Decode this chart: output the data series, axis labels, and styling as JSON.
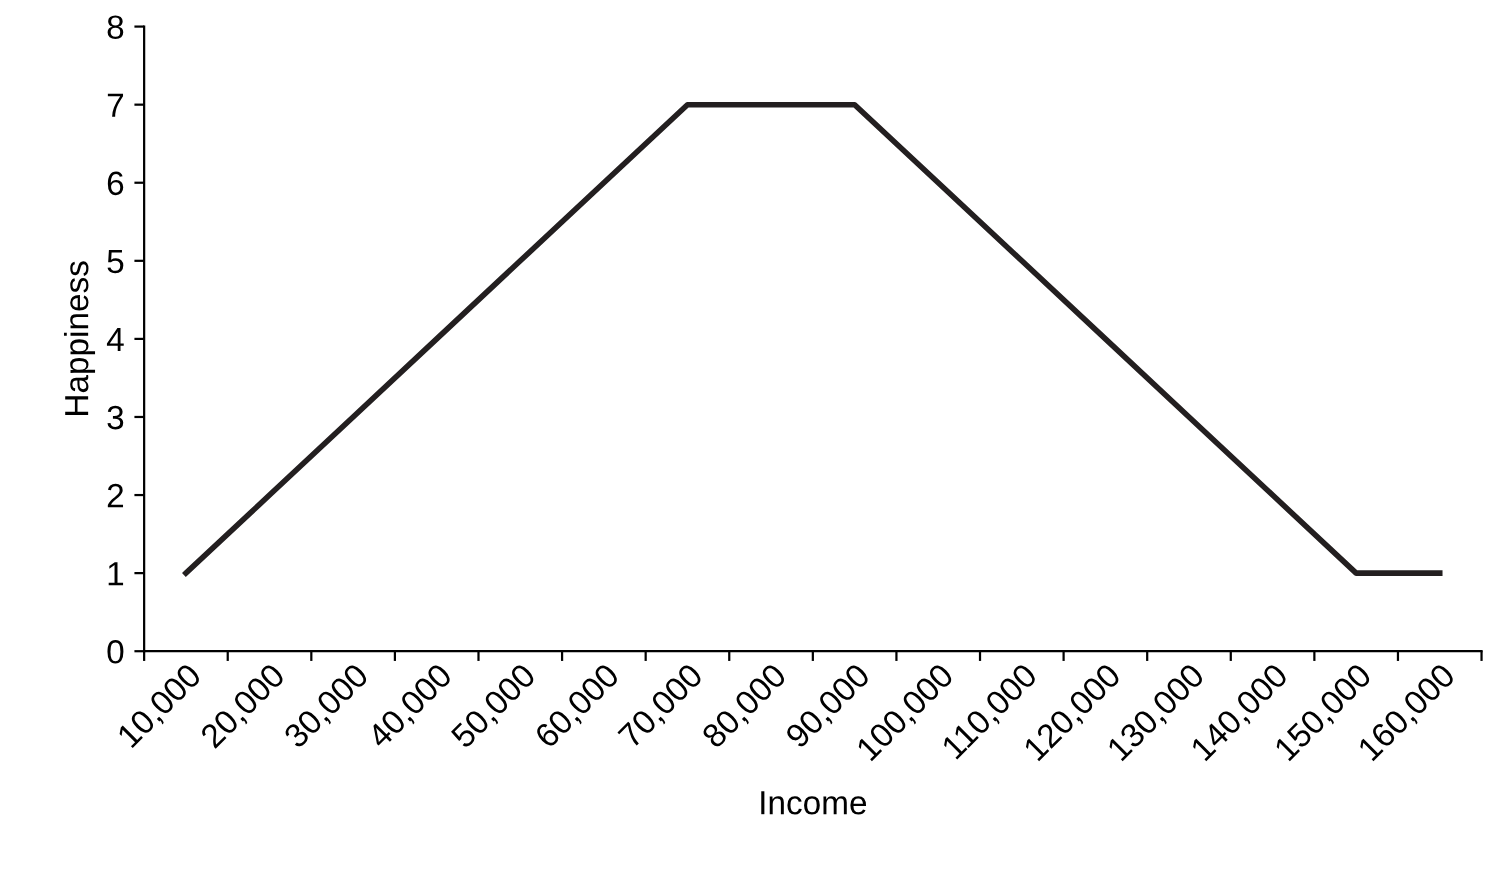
{
  "chart_data": {
    "type": "line",
    "xlabel": "Income",
    "ylabel": "Happiness",
    "categories": [
      "10,000",
      "20,000",
      "30,000",
      "40,000",
      "50,000",
      "60,000",
      "70,000",
      "80,000",
      "90,000",
      "100,000",
      "110,000",
      "120,000",
      "130,000",
      "140,000",
      "150,000",
      "160,000"
    ],
    "series": [
      {
        "color": "#231f20",
        "values": [
          1,
          2,
          3,
          4,
          5,
          6,
          7,
          7,
          7,
          6,
          5,
          4,
          3,
          2,
          1,
          1
        ]
      }
    ],
    "ylim": [
      0,
      8
    ],
    "yticks": [
      0,
      1,
      2,
      3,
      4,
      5,
      6,
      7,
      8
    ],
    "grid": false,
    "legend": false,
    "marker": "none",
    "line_style": "solid"
  }
}
